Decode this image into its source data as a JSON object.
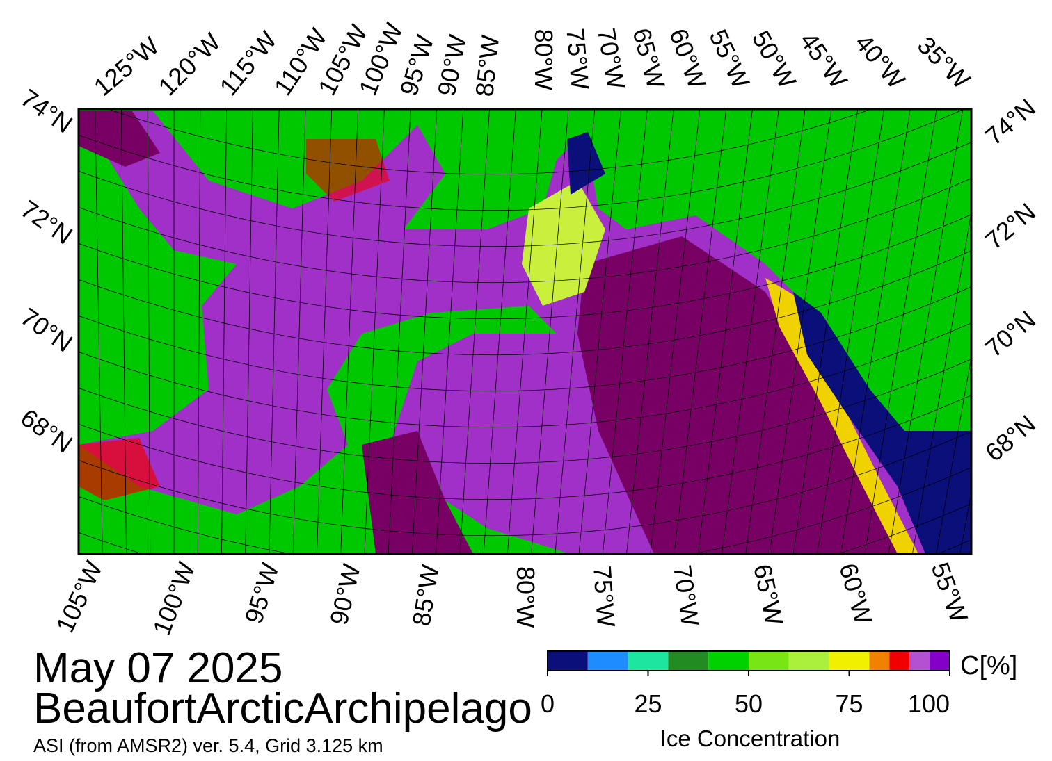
{
  "header": {
    "date": "May 07 2025",
    "region": "BeaufortArcticArchipelago",
    "footnote": "ASI (from AMSR2) ver. 5.4,  Grid 3.125 km"
  },
  "map": {
    "top_lon_labels": [
      "125°W",
      "120°W",
      "115°W",
      "110°W",
      "105°W",
      "100°W",
      "95°W",
      "90°W",
      "85°W",
      "80°W",
      "75°W",
      "70°W",
      "65°W",
      "60°W",
      "55°W",
      "50°W",
      "45°W",
      "40°W",
      "35°W"
    ],
    "bottom_lon_labels": [
      "105°W",
      "100°W",
      "95°W",
      "90°W",
      "85°W",
      "80°W",
      "75°W",
      "70°W",
      "65°W",
      "60°W",
      "55°W"
    ],
    "left_lat_labels": [
      "74°N",
      "72°N",
      "70°N",
      "68°N"
    ],
    "right_lat_labels": [
      "74°N",
      "72°N",
      "70°N",
      "68°N"
    ]
  },
  "colorbar": {
    "label": "Ice Concentration",
    "unit": "C[%]",
    "bounds": [
      0,
      10,
      20,
      30,
      40,
      50,
      60,
      70,
      80,
      85,
      90,
      95,
      100
    ],
    "colors": [
      "#0a0f7a",
      "#1e8cff",
      "#1ee6a0",
      "#228b22",
      "#00d200",
      "#78e614",
      "#aaf03c",
      "#f0f000",
      "#f08200",
      "#f00000",
      "#b450d2",
      "#8200c8"
    ],
    "ticks": [
      0,
      25,
      50,
      75,
      100
    ]
  }
}
